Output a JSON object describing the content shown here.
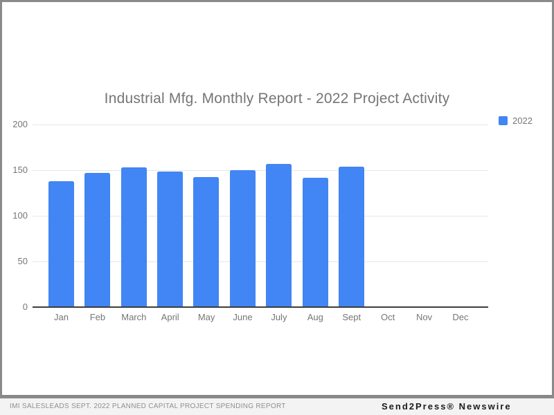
{
  "chart_data": {
    "type": "bar",
    "title": "Industrial Mfg. Monthly Report - 2022 Project Activity",
    "categories": [
      "Jan",
      "Feb",
      "March",
      "April",
      "May",
      "June",
      "July",
      "Aug",
      "Sept",
      "Oct",
      "Nov",
      "Dec"
    ],
    "series": [
      {
        "name": "2022",
        "values": [
          137,
          146,
          152,
          148,
          142,
          149,
          156,
          141,
          153,
          0,
          0,
          0
        ]
      }
    ],
    "xlabel": "",
    "ylabel": "",
    "ylim": [
      0,
      200
    ],
    "yticks": [
      0,
      50,
      100,
      150,
      200
    ],
    "grid": true,
    "legend_position": "right"
  },
  "footer": {
    "left_text": "IMI SALESLEADS SEPT. 2022 PLANNED CAPITAL PROJECT SPENDING REPORT",
    "right_text": "Send2Press® Newswire"
  },
  "colors": {
    "bar": "#4285f4",
    "title_text": "#757575",
    "axis_text": "#757575",
    "gridline": "#e6e6e6",
    "baseline": "#3c3c3c",
    "frame_border": "#8a8a8a",
    "divider_bar": "#868686",
    "footer_bg": "#f3f3f3",
    "footer_left_text": "#8f8f8f",
    "footer_right_text": "#1c1c1c"
  }
}
